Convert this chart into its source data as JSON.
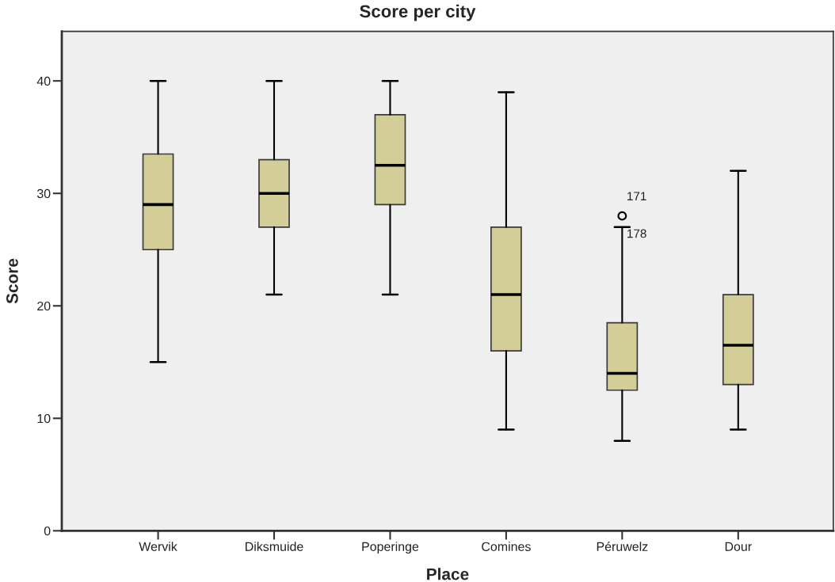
{
  "chart_data": {
    "type": "box",
    "title": "Score per city",
    "xlabel": "Place",
    "ylabel": "Score",
    "categories": [
      "Wervik",
      "Diksmuide",
      "Poperinge",
      "Comines",
      "Péruwelz",
      "Dour"
    ],
    "boxes": [
      {
        "low": 15,
        "q1": 25,
        "median": 29,
        "q3": 33.5,
        "high": 40
      },
      {
        "low": 21,
        "q1": 27,
        "median": 30,
        "q3": 33,
        "high": 40
      },
      {
        "low": 21,
        "q1": 29,
        "median": 32.5,
        "q3": 37,
        "high": 40
      },
      {
        "low": 9,
        "q1": 16,
        "median": 21,
        "q3": 27,
        "high": 39
      },
      {
        "low": 8,
        "q1": 12.5,
        "median": 14,
        "q3": 18.5,
        "high": 27,
        "outliers": [
          28
        ]
      },
      {
        "low": 9,
        "q1": 13,
        "median": 16.5,
        "q3": 21,
        "high": 32
      }
    ],
    "color": "#d3ce97",
    "ylim": [
      0,
      44.4
    ],
    "yticks": [
      0,
      10,
      20,
      30,
      40
    ],
    "annotations": [
      "171",
      "178"
    ]
  }
}
